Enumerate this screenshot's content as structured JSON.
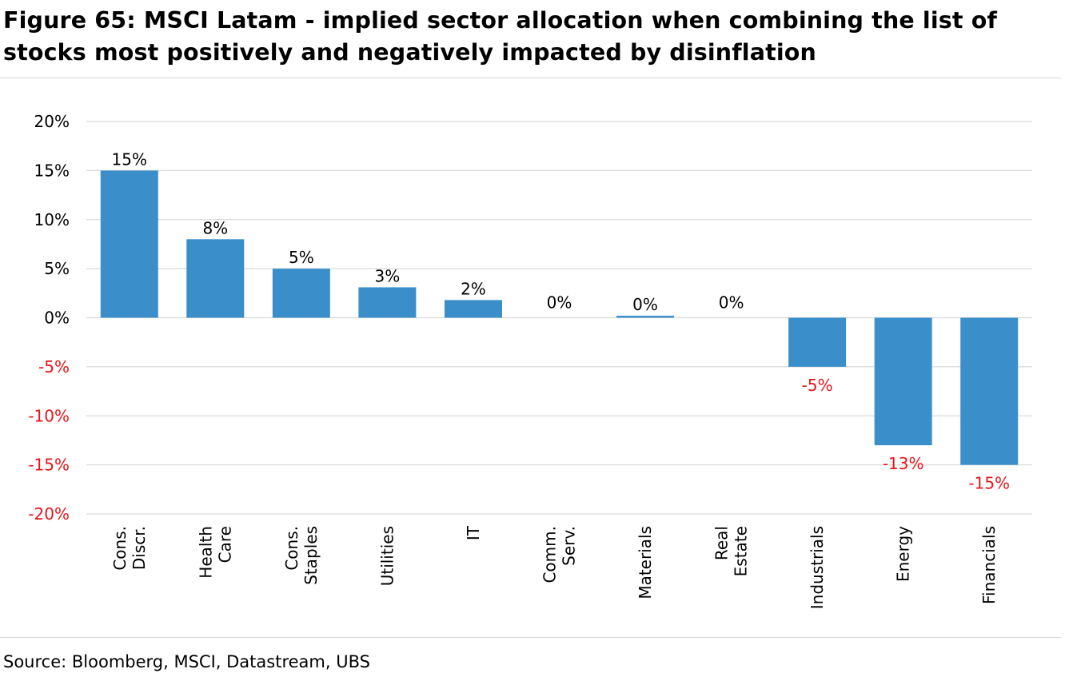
{
  "title": "Figure 65: MSCI Latam - implied sector allocation when combining the list of stocks most positively and negatively impacted by disinflation",
  "source": "Source: Bloomberg, MSCI, Datastream, UBS",
  "colors": {
    "bar": "#3a8fcb",
    "grid": "#d9d9d9",
    "negative_label": "#e8141a",
    "positive_label": "#000000"
  },
  "chart_data": {
    "type": "bar",
    "categories": [
      [
        "Cons.",
        "Discr."
      ],
      [
        "Health",
        "Care"
      ],
      [
        "Cons.",
        "Staples"
      ],
      [
        "Utilities"
      ],
      [
        "IT"
      ],
      [
        "Comm.",
        "Serv."
      ],
      [
        "Materials"
      ],
      [
        "Real",
        "Estate"
      ],
      [
        "Industrials"
      ],
      [
        "Energy"
      ],
      [
        "Financials"
      ]
    ],
    "values": [
      15,
      8,
      5,
      3.1,
      1.8,
      0,
      0.2,
      0,
      -5,
      -13,
      -15
    ],
    "data_labels": [
      "15%",
      "8%",
      "5%",
      "3%",
      "2%",
      "0%",
      "0%",
      "0%",
      "-5%",
      "-13%",
      "-15%"
    ],
    "ylim": [
      -20,
      20
    ],
    "yticks": [
      20,
      15,
      10,
      5,
      0,
      -5,
      -10,
      -15,
      -20
    ],
    "ytick_labels": [
      "20%",
      "15%",
      "10%",
      "5%",
      "0%",
      "-5%",
      "-10%",
      "-15%",
      "-20%"
    ],
    "grid": true,
    "legend": "none"
  }
}
